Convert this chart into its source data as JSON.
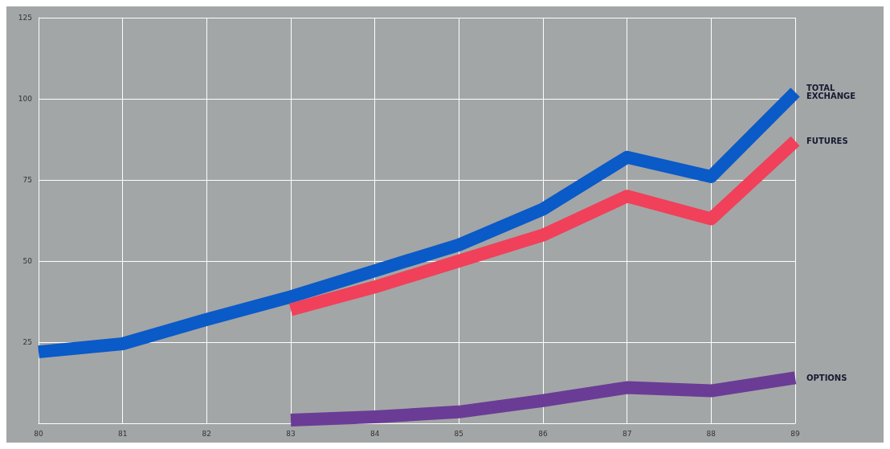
{
  "chart_data": {
    "type": "line",
    "categories": [
      "80",
      "81",
      "82",
      "83",
      "84",
      "85",
      "86",
      "87",
      "88",
      "89"
    ],
    "series": [
      {
        "name": "TOTAL EXCHANGE",
        "color": "#0a5ac8",
        "values": [
          22,
          24.5,
          32,
          39,
          47,
          55,
          66,
          82,
          76,
          102
        ]
      },
      {
        "name": "FUTURES",
        "color": "#f0405a",
        "values": [
          null,
          null,
          null,
          35,
          42,
          50,
          58,
          70,
          63,
          87
        ]
      },
      {
        "name": "OPTIONS",
        "color": "#6a3c96",
        "values": [
          null,
          null,
          null,
          1,
          2,
          3.5,
          7,
          11,
          10,
          14
        ]
      }
    ],
    "ylim": [
      0,
      125
    ],
    "yticks": [
      {
        "value": 0,
        "label": null
      },
      25,
      50,
      75,
      100,
      125
    ],
    "grid": true,
    "legend": false,
    "marker": "none",
    "line_style": "solid"
  }
}
